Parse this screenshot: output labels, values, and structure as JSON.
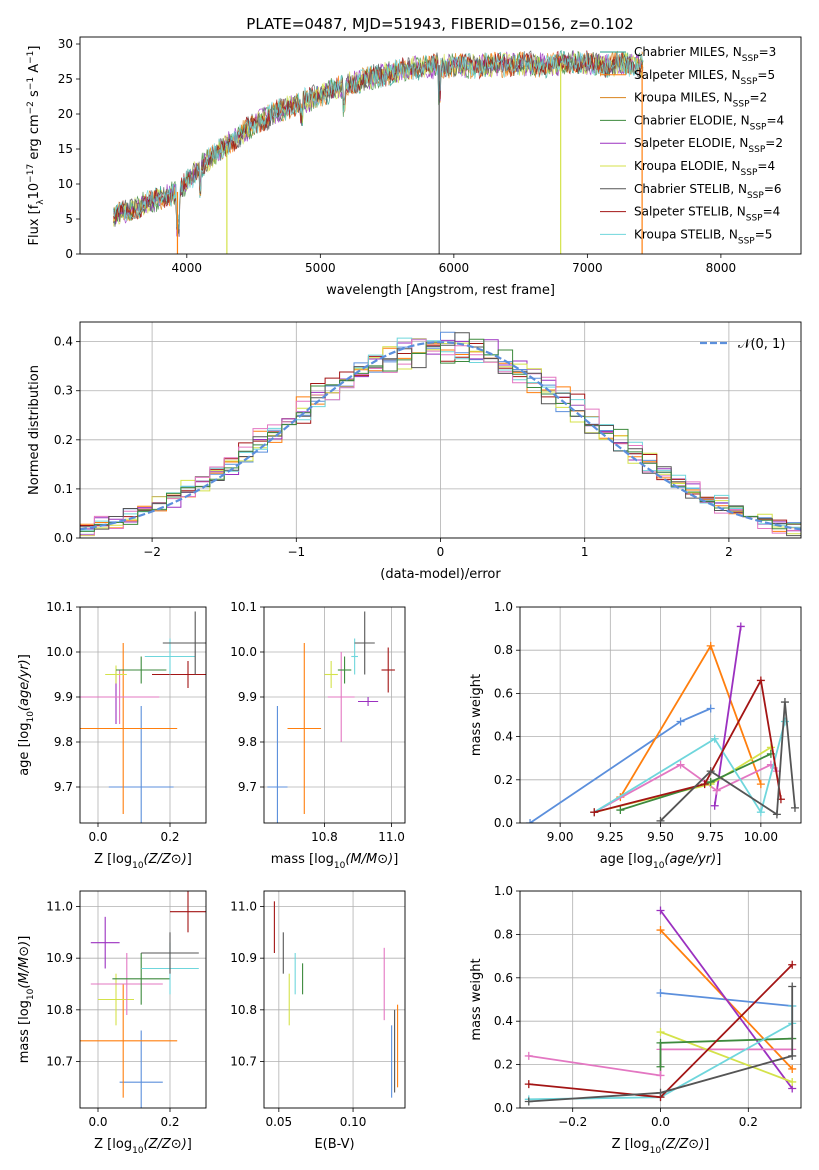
{
  "figure": {
    "title": "PLATE=0487, MJD=51943, FIBERID=0156, z=0.102"
  },
  "chart_data": [
    {
      "id": "spectrum",
      "type": "line",
      "xlabel": "wavelength [Angstrom, rest frame]",
      "ylabel_parts": [
        "Flux [f",
        "λ",
        "10",
        "−17",
        " erg cm",
        "−2",
        " s",
        "−1",
        " A",
        "−1",
        "]"
      ],
      "xlim": [
        3200,
        8600
      ],
      "ylim": [
        0,
        31
      ],
      "xticks": [
        4000,
        5000,
        6000,
        7000,
        8000
      ],
      "yticks": [
        0,
        5,
        10,
        15,
        20,
        25,
        30
      ],
      "grid": false,
      "legend_position": "right",
      "legend_entries": [
        {
          "prefix": "Chabrier MILES, N",
          "sub": "SSP",
          "suffix": "=3",
          "color": "#1f9e89"
        },
        {
          "prefix": "Salpeter MILES, N",
          "sub": "SSP",
          "suffix": "=5",
          "color": "#ff7f0e"
        },
        {
          "prefix": "Kroupa MILES, N",
          "sub": "SSP",
          "suffix": "=2",
          "color": "#d9821c"
        },
        {
          "prefix": "Chabrier ELODIE, N",
          "sub": "SSP",
          "suffix": "=4",
          "color": "#3d8a3d"
        },
        {
          "prefix": "Salpeter ELODIE, N",
          "sub": "SSP",
          "suffix": "=2",
          "color": "#9b30c0"
        },
        {
          "prefix": "Kroupa ELODIE, N",
          "sub": "SSP",
          "suffix": "=4",
          "color": "#d4e24a"
        },
        {
          "prefix": "Chabrier STELIB, N",
          "sub": "SSP",
          "suffix": "=6",
          "color": "#555555"
        },
        {
          "prefix": "Salpeter STELIB, N",
          "sub": "SSP",
          "suffix": "=4",
          "color": "#a31515"
        },
        {
          "prefix": "Kroupa STELIB, N",
          "sub": "SSP",
          "suffix": "=5",
          "color": "#6fd6dc"
        }
      ],
      "continuum": {
        "x": [
          3450,
          3600,
          3800,
          3950,
          4100,
          4300,
          4500,
          4700,
          4900,
          5100,
          5300,
          5500,
          5700,
          5900,
          6100,
          6300,
          6500,
          6700,
          6900,
          7100,
          7300,
          7400
        ],
        "y": [
          5.5,
          6.5,
          8.0,
          9.0,
          12.5,
          15.5,
          18.5,
          20.5,
          22.0,
          23.5,
          24.8,
          25.8,
          26.5,
          27.0,
          26.8,
          27.0,
          27.2,
          27.0,
          27.5,
          27.0,
          27.2,
          27.0
        ]
      },
      "drops": [
        3930,
        4300,
        5890,
        6800,
        7410
      ],
      "drop_colors": [
        "#ff7f0e",
        "#d4e24a",
        "#555555",
        "#d4e24a",
        "#ff7f0e"
      ]
    },
    {
      "id": "residuals",
      "type": "step",
      "xlabel": "(data-model)/error",
      "ylabel": "Normed distribution",
      "xlim": [
        -2.5,
        2.5
      ],
      "ylim": [
        0,
        0.44
      ],
      "xticks": [
        -2,
        -1,
        0,
        1,
        2
      ],
      "ytick_labels": [
        "0.0",
        "0.1",
        "0.2",
        "0.3",
        "0.4"
      ],
      "yticks": [
        0,
        0.1,
        0.2,
        0.3,
        0.4
      ],
      "grid": true,
      "legend_position": "top-right",
      "legend_label": "𝒩(0, 1)",
      "gaussian_color": "#5b8fdc",
      "bin_width": 0.1,
      "step_colors": [
        "#5b8fdc",
        "#ff7f0e",
        "#9b30c0",
        "#d4e24a",
        "#a31515",
        "#6fd6dc",
        "#e377c2",
        "#555555",
        "#3d8a3d"
      ]
    },
    {
      "id": "z-vs-age",
      "type": "errorbar",
      "xlabel": "Z [log10(Z/Z⊙)]",
      "ylabel": "age [log10(age/yr)]",
      "xlim": [
        -0.05,
        0.3
      ],
      "ylim": [
        9.62,
        10.1
      ],
      "xticks": [
        0.0,
        0.2
      ],
      "xtick_labels": [
        "0.0",
        "0.2"
      ],
      "yticks": [
        9.7,
        9.8,
        9.9,
        10.0,
        10.1
      ],
      "ytick_labels": [
        "9.7",
        "9.8",
        "9.9",
        "10.0",
        "10.1"
      ],
      "grid": true,
      "points": [
        {
          "x": 0.12,
          "xerr": 0.09,
          "y": 9.7,
          "yerr": 0.18,
          "color": "#5b8fdc"
        },
        {
          "x": 0.07,
          "xerr": 0.15,
          "y": 9.83,
          "yerr": 0.19,
          "color": "#ff7f0e"
        },
        {
          "x": 0.05,
          "xerr": 0.05,
          "y": 9.9,
          "yerr": 0.06,
          "color": "#9b30c0"
        },
        {
          "x": 0.06,
          "xerr": 0.11,
          "y": 9.9,
          "yerr": 0.06,
          "color": "#e377c2"
        },
        {
          "x": 0.05,
          "xerr": 0.03,
          "y": 9.95,
          "yerr": 0.02,
          "color": "#d4e24a"
        },
        {
          "x": 0.25,
          "xerr": 0.1,
          "y": 9.95,
          "yerr": 0.03,
          "color": "#a31515"
        },
        {
          "x": 0.12,
          "xerr": 0.07,
          "y": 9.96,
          "yerr": 0.03,
          "color": "#3d8a3d"
        },
        {
          "x": 0.2,
          "xerr": 0.07,
          "y": 9.99,
          "yerr": 0.04,
          "color": "#6fd6dc"
        },
        {
          "x": 0.27,
          "xerr": 0.09,
          "y": 10.02,
          "yerr": 0.07,
          "color": "#555555"
        }
      ]
    },
    {
      "id": "mass-vs-age",
      "type": "errorbar",
      "xlabel": "mass [log10(M/M⊙)]",
      "ylabel": "",
      "xlim": [
        10.62,
        11.04
      ],
      "ylim": [
        9.62,
        10.1
      ],
      "xticks": [
        10.8,
        11.0
      ],
      "xtick_labels": [
        "10.8",
        "11.0"
      ],
      "yticks": [
        9.7,
        9.8,
        9.9,
        10.0,
        10.1
      ],
      "ytick_labels": [
        "9.7",
        "9.8",
        "9.9",
        "10.0",
        "10.1"
      ],
      "grid": true,
      "points": [
        {
          "x": 10.66,
          "xerr": 0.03,
          "y": 9.7,
          "yerr": 0.18,
          "color": "#5b8fdc"
        },
        {
          "x": 10.74,
          "xerr": 0.05,
          "y": 9.83,
          "yerr": 0.19,
          "color": "#ff7f0e"
        },
        {
          "x": 10.85,
          "xerr": 0.04,
          "y": 9.9,
          "yerr": 0.1,
          "color": "#e377c2"
        },
        {
          "x": 10.93,
          "xerr": 0.03,
          "y": 9.89,
          "yerr": 0.01,
          "color": "#9b30c0"
        },
        {
          "x": 10.82,
          "xerr": 0.02,
          "y": 9.95,
          "yerr": 0.03,
          "color": "#d4e24a"
        },
        {
          "x": 10.86,
          "xerr": 0.02,
          "y": 9.96,
          "yerr": 0.03,
          "color": "#3d8a3d"
        },
        {
          "x": 10.89,
          "xerr": 0.01,
          "y": 9.99,
          "yerr": 0.04,
          "color": "#6fd6dc"
        },
        {
          "x": 10.92,
          "xerr": 0.03,
          "y": 10.02,
          "yerr": 0.07,
          "color": "#555555"
        },
        {
          "x": 10.99,
          "xerr": 0.02,
          "y": 9.96,
          "yerr": 0.05,
          "color": "#a31515"
        }
      ]
    },
    {
      "id": "age-vs-massweight",
      "type": "line",
      "xlabel": "age [log10(age/yr)]",
      "ylabel": "mass weight",
      "xlim": [
        8.8,
        10.2
      ],
      "ylim": [
        0,
        1.0
      ],
      "xticks": [
        9.0,
        9.25,
        9.5,
        9.75,
        10.0
      ],
      "xtick_labels": [
        "9.00",
        "9.25",
        "9.50",
        "9.75",
        "10.00"
      ],
      "yticks": [
        0,
        0.2,
        0.4,
        0.6,
        0.8,
        1.0
      ],
      "ytick_labels": [
        "0.0",
        "0.2",
        "0.4",
        "0.6",
        "0.8",
        "1.0"
      ],
      "grid": true,
      "series": [
        {
          "color": "#5b8fdc",
          "x": [
            8.85,
            9.6,
            9.75
          ],
          "y": [
            0.0,
            0.47,
            0.53
          ]
        },
        {
          "color": "#ff7f0e",
          "x": [
            9.3,
            9.75,
            10.0
          ],
          "y": [
            0.12,
            0.82,
            0.18
          ]
        },
        {
          "color": "#9b30c0",
          "x": [
            9.77,
            9.9
          ],
          "y": [
            0.08,
            0.91
          ]
        },
        {
          "color": "#e377c2",
          "x": [
            9.17,
            9.6,
            9.78,
            10.05,
            10.08
          ],
          "y": [
            0.05,
            0.27,
            0.15,
            0.27,
            0.24
          ]
        },
        {
          "color": "#d4e24a",
          "x": [
            9.17,
            9.75,
            10.05
          ],
          "y": [
            0.05,
            0.18,
            0.35
          ]
        },
        {
          "color": "#3d8a3d",
          "x": [
            9.3,
            9.75,
            10.05
          ],
          "y": [
            0.06,
            0.19,
            0.32
          ]
        },
        {
          "color": "#6fd6dc",
          "x": [
            9.17,
            9.77,
            10.0,
            10.12
          ],
          "y": [
            0.05,
            0.39,
            0.05,
            0.47
          ]
        },
        {
          "color": "#a31515",
          "x": [
            9.17,
            9.72,
            10.0,
            10.1
          ],
          "y": [
            0.05,
            0.18,
            0.66,
            0.11
          ]
        },
        {
          "color": "#555555",
          "x": [
            9.5,
            9.75,
            10.08,
            10.12,
            10.17
          ],
          "y": [
            0.01,
            0.24,
            0.04,
            0.56,
            0.07
          ]
        }
      ]
    },
    {
      "id": "z-vs-mass",
      "type": "errorbar",
      "xlabel": "Z [log10(Z/Z⊙)]",
      "ylabel": "mass [log10(M/M⊙)]",
      "xlim": [
        -0.05,
        0.3
      ],
      "ylim": [
        10.61,
        11.03
      ],
      "xticks": [
        0.0,
        0.2
      ],
      "xtick_labels": [
        "0.0",
        "0.2"
      ],
      "yticks": [
        10.7,
        10.8,
        10.9,
        11.0
      ],
      "ytick_labels": [
        "10.7",
        "10.8",
        "10.9",
        "11.0"
      ],
      "grid": true,
      "points": [
        {
          "x": 0.12,
          "xerr": 0.06,
          "y": 10.66,
          "yerr": 0.1,
          "color": "#5b8fdc"
        },
        {
          "x": 0.07,
          "xerr": 0.15,
          "y": 10.74,
          "yerr": 0.11,
          "color": "#ff7f0e"
        },
        {
          "x": 0.05,
          "xerr": 0.05,
          "y": 10.82,
          "yerr": 0.05,
          "color": "#d4e24a"
        },
        {
          "x": 0.08,
          "xerr": 0.1,
          "y": 10.85,
          "yerr": 0.06,
          "color": "#e377c2"
        },
        {
          "x": 0.12,
          "xerr": 0.08,
          "y": 10.86,
          "yerr": 0.05,
          "color": "#3d8a3d"
        },
        {
          "x": 0.2,
          "xerr": 0.08,
          "y": 10.88,
          "yerr": 0.05,
          "color": "#6fd6dc"
        },
        {
          "x": 0.2,
          "xerr": 0.08,
          "y": 10.91,
          "yerr": 0.04,
          "color": "#555555"
        },
        {
          "x": 0.02,
          "xerr": 0.04,
          "y": 10.93,
          "yerr": 0.05,
          "color": "#9b30c0"
        },
        {
          "x": 0.25,
          "xerr": 0.05,
          "y": 10.99,
          "yerr": 0.04,
          "color": "#a31515"
        }
      ]
    },
    {
      "id": "ebv-vs-mass",
      "type": "errorbar",
      "xlabel": "E(B-V)",
      "ylabel": "",
      "xlim": [
        0.04,
        0.135
      ],
      "ylim": [
        10.61,
        11.03
      ],
      "xticks": [
        0.05,
        0.1
      ],
      "xtick_labels": [
        "0.05",
        "0.10"
      ],
      "yticks": [
        10.7,
        10.8,
        10.9,
        11.0
      ],
      "ytick_labels": [
        "10.7",
        "10.8",
        "10.9",
        "11.0"
      ],
      "grid": true,
      "points": [
        {
          "x": 0.047,
          "xerr": 0.0,
          "y": 10.96,
          "yerr": 0.05,
          "color": "#a31515"
        },
        {
          "x": 0.053,
          "xerr": 0.0,
          "y": 10.91,
          "yerr": 0.04,
          "color": "#555555"
        },
        {
          "x": 0.057,
          "xerr": 0.0,
          "y": 10.82,
          "yerr": 0.05,
          "color": "#d4e24a"
        },
        {
          "x": 0.061,
          "xerr": 0.0,
          "y": 10.87,
          "yerr": 0.04,
          "color": "#6fd6dc"
        },
        {
          "x": 0.066,
          "xerr": 0.0,
          "y": 10.86,
          "yerr": 0.03,
          "color": "#3d8a3d"
        },
        {
          "x": 0.121,
          "xerr": 0.0,
          "y": 10.85,
          "yerr": 0.07,
          "color": "#e377c2"
        },
        {
          "x": 0.126,
          "xerr": 0.0,
          "y": 10.7,
          "yerr": 0.07,
          "color": "#5b8fdc"
        },
        {
          "x": 0.128,
          "xerr": 0.0,
          "y": 10.72,
          "yerr": 0.08,
          "color": "#555555"
        },
        {
          "x": 0.13,
          "xerr": 0.0,
          "y": 10.73,
          "yerr": 0.08,
          "color": "#ff7f0e"
        }
      ]
    },
    {
      "id": "z-vs-massweight",
      "type": "line",
      "xlabel": "Z [log10(Z/Z⊙)]",
      "ylabel": "mass weight",
      "xlim": [
        -0.32,
        0.32
      ],
      "ylim": [
        0,
        1.0
      ],
      "xticks": [
        -0.2,
        0.0,
        0.2
      ],
      "xtick_labels": [
        "−0.2",
        "0.0",
        "0.2"
      ],
      "yticks": [
        0,
        0.2,
        0.4,
        0.6,
        0.8,
        1.0
      ],
      "ytick_labels": [
        "0.0",
        "0.2",
        "0.4",
        "0.6",
        "0.8",
        "1.0"
      ],
      "grid": true,
      "series": [
        {
          "color": "#5b8fdc",
          "x": [
            0.0,
            0.3
          ],
          "y": [
            0.53,
            0.47
          ]
        },
        {
          "color": "#ff7f0e",
          "x": [
            0.0,
            0.3
          ],
          "y": [
            0.82,
            0.18
          ]
        },
        {
          "color": "#9b30c0",
          "x": [
            0.0,
            0.3
          ],
          "y": [
            0.91,
            0.09
          ]
        },
        {
          "color": "#e377c2",
          "x": [
            -0.3,
            0.0,
            0.0,
            0.3
          ],
          "y": [
            0.24,
            0.15,
            0.27,
            0.27
          ]
        },
        {
          "color": "#d4e24a",
          "x": [
            0.0,
            0.3
          ],
          "y": [
            0.35,
            0.12
          ]
        },
        {
          "color": "#3d8a3d",
          "x": [
            0.0,
            0.0,
            0.3
          ],
          "y": [
            0.19,
            0.3,
            0.32
          ]
        },
        {
          "color": "#6fd6dc",
          "x": [
            -0.3,
            0.0,
            0.3,
            0.3
          ],
          "y": [
            0.04,
            0.05,
            0.39,
            0.47
          ]
        },
        {
          "color": "#a31515",
          "x": [
            -0.3,
            0.0,
            0.3
          ],
          "y": [
            0.11,
            0.05,
            0.66
          ]
        },
        {
          "color": "#555555",
          "x": [
            -0.3,
            0.0,
            0.3,
            0.3
          ],
          "y": [
            0.03,
            0.07,
            0.24,
            0.56
          ]
        }
      ]
    }
  ]
}
